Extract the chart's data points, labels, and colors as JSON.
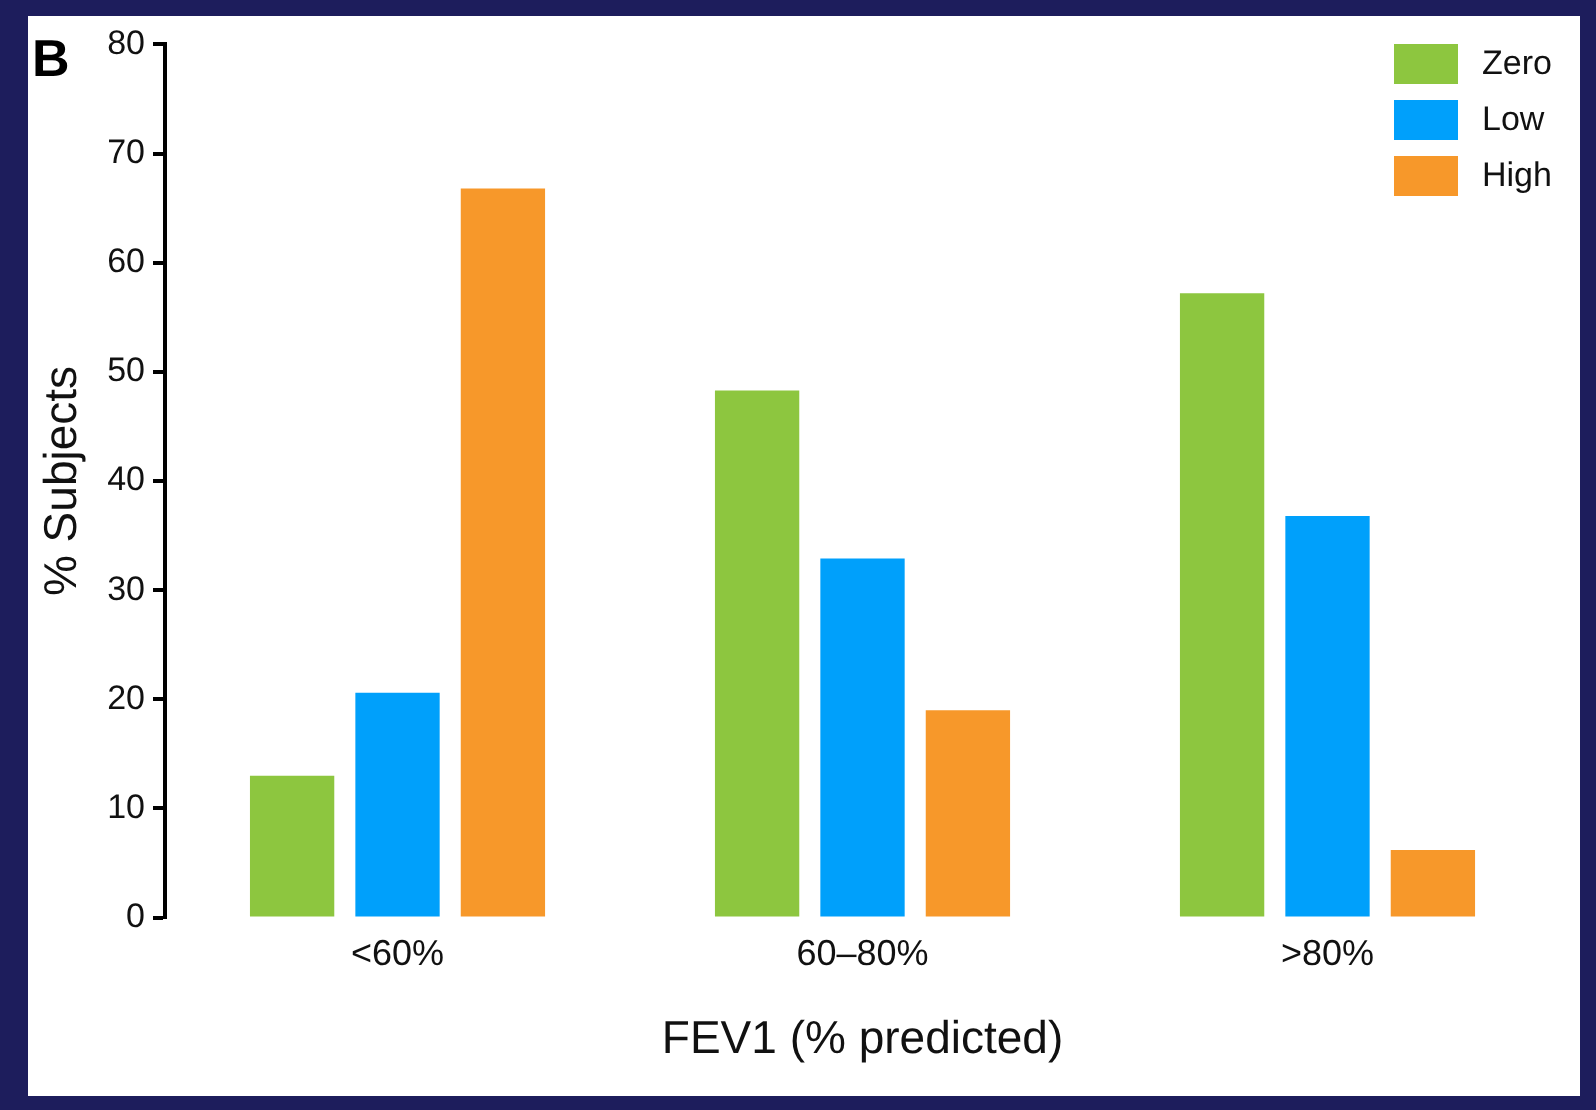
{
  "chart_data": {
    "type": "bar",
    "xlabel": "FEV1 (% predicted)",
    "ylabel": "% Subjects",
    "annotations": [
      "B"
    ],
    "categories": [
      "<60%",
      "60–80%",
      ">80%"
    ],
    "series": [
      {
        "name": "Zero",
        "color": "#8dc63f",
        "values": [
          13,
          48.3,
          57.2
        ]
      },
      {
        "name": "Low",
        "color": "#00a0fb",
        "values": [
          20.6,
          32.9,
          36.8
        ]
      },
      {
        "name": "High",
        "color": "#f7982a",
        "values": [
          66.8,
          19,
          6.2
        ]
      }
    ],
    "ylim": [
      0,
      80
    ],
    "yticks": [
      0,
      10,
      20,
      30,
      40,
      50,
      60,
      70,
      80
    ],
    "grid": false,
    "legend": "top right"
  }
}
